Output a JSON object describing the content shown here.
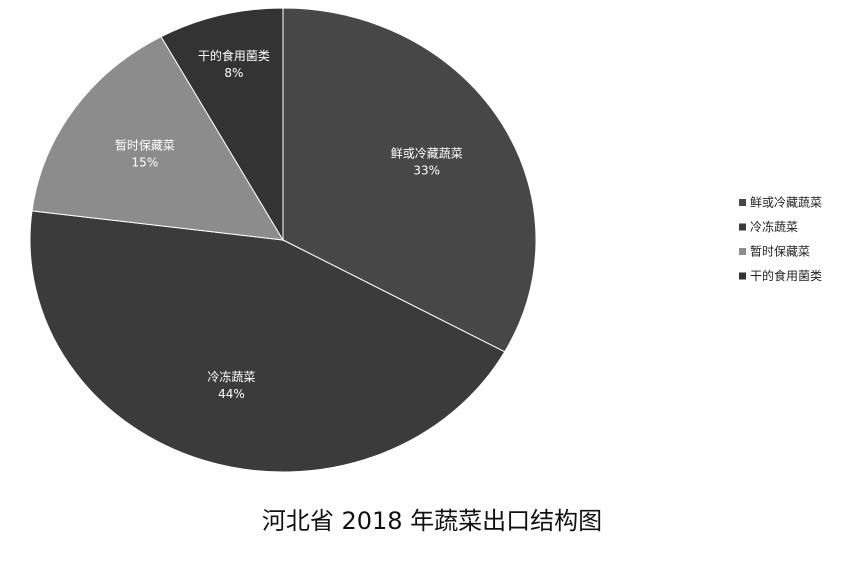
{
  "chart_data": {
    "type": "pie",
    "title": "河北省 2018 年蔬菜出口结构图",
    "categories": [
      "鲜或冷藏蔬菜",
      "冷冻蔬菜",
      "暂时保藏菜",
      "干的食用菌类"
    ],
    "values": [
      33,
      44,
      15,
      8
    ],
    "value_labels": [
      "33%",
      "44%",
      "15%",
      "8%"
    ],
    "colors": [
      "#474747",
      "#3b3b3b",
      "#8c8c8c",
      "#333333"
    ],
    "legend": "right"
  }
}
